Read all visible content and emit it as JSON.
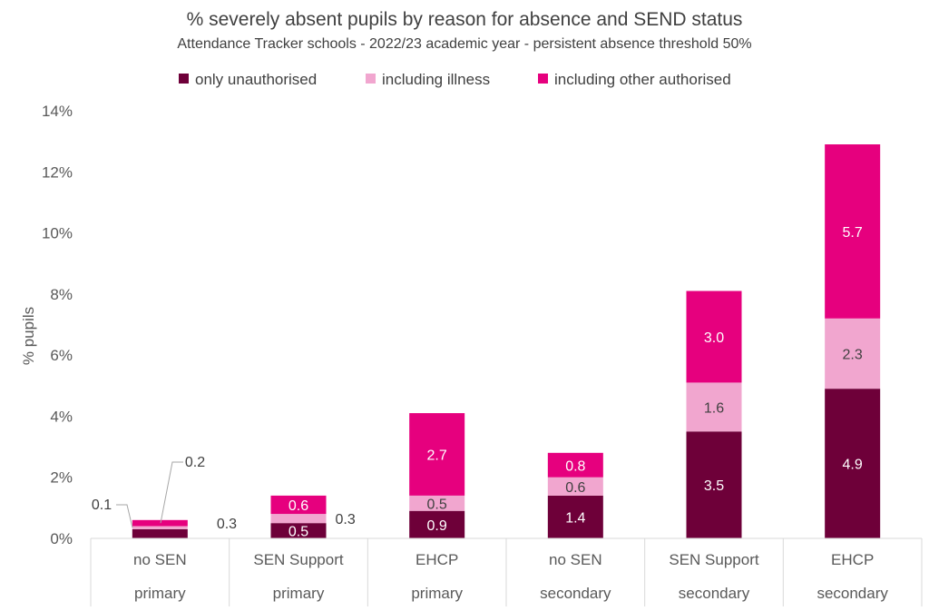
{
  "chart_data": {
    "type": "bar",
    "stacked": true,
    "title": "% severely absent pupils by reason for absence and SEND status",
    "subtitle": "Attendance Tracker schools - 2022/23 academic year - persistent absence threshold 50%",
    "ylabel": "% pupils",
    "ylim": [
      0,
      14
    ],
    "yticks": [
      "0%",
      "2%",
      "4%",
      "6%",
      "8%",
      "10%",
      "12%",
      "14%"
    ],
    "ytick_values": [
      0,
      2,
      4,
      6,
      8,
      10,
      12,
      14
    ],
    "legend_position": "top",
    "categories": [
      [
        "no SEN",
        "primary"
      ],
      [
        "SEN Support",
        "primary"
      ],
      [
        "EHCP",
        "primary"
      ],
      [
        "no SEN",
        "secondary"
      ],
      [
        "SEN Support",
        "secondary"
      ],
      [
        "EHCP",
        "secondary"
      ]
    ],
    "series": [
      {
        "name": "only unauthorised",
        "color": "#6e0039",
        "label_color": "#ffffff",
        "values": [
          0.3,
          0.5,
          0.9,
          1.4,
          3.5,
          4.9
        ],
        "labels": [
          "0.3",
          "0.5",
          "0.9",
          "1.4",
          "3.5",
          "4.9"
        ]
      },
      {
        "name": "including illness",
        "color": "#f1a6cf",
        "label_color": "#404040",
        "values": [
          0.1,
          0.3,
          0.5,
          0.6,
          1.6,
          2.3
        ],
        "labels": [
          "0.1",
          "0.3",
          "0.5",
          "0.6",
          "1.6",
          "2.3"
        ]
      },
      {
        "name": "including other authorised",
        "color": "#e6007e",
        "label_color": "#ffffff",
        "values": [
          0.2,
          0.6,
          2.7,
          0.8,
          3.0,
          5.7
        ],
        "labels": [
          "0.2",
          "0.6",
          "2.7",
          "0.8",
          "3.0",
          "5.7"
        ]
      }
    ]
  }
}
